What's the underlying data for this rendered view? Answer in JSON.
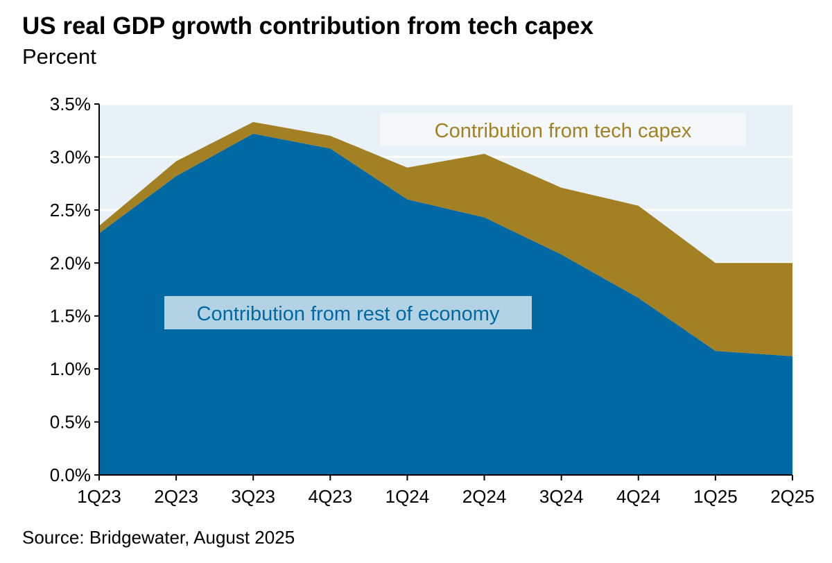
{
  "chart_data": {
    "type": "area",
    "stacked": true,
    "title": "US real GDP growth contribution from tech capex",
    "subtitle": "Percent",
    "source": "Source: Bridgewater, August 2025",
    "categories": [
      "1Q23",
      "2Q23",
      "3Q23",
      "4Q23",
      "1Q24",
      "2Q24",
      "3Q24",
      "4Q24",
      "1Q25",
      "2Q25"
    ],
    "series": [
      {
        "name": "Contribution from rest of economy",
        "color": "#0069a3",
        "values": [
          2.28,
          2.82,
          3.22,
          3.08,
          2.6,
          2.43,
          2.08,
          1.67,
          1.17,
          1.12
        ]
      },
      {
        "name": "Contribution from tech capex",
        "color": "#a38024",
        "values": [
          0.07,
          0.14,
          0.11,
          0.12,
          0.3,
          0.6,
          0.63,
          0.87,
          0.83,
          0.88
        ]
      }
    ],
    "ylim": [
      0,
      3.5
    ],
    "yticks": [
      "0.0%",
      "0.5%",
      "1.0%",
      "1.5%",
      "2.0%",
      "2.5%",
      "3.0%",
      "3.5%"
    ],
    "grid": true,
    "plot_background": "#e8f1f5"
  }
}
